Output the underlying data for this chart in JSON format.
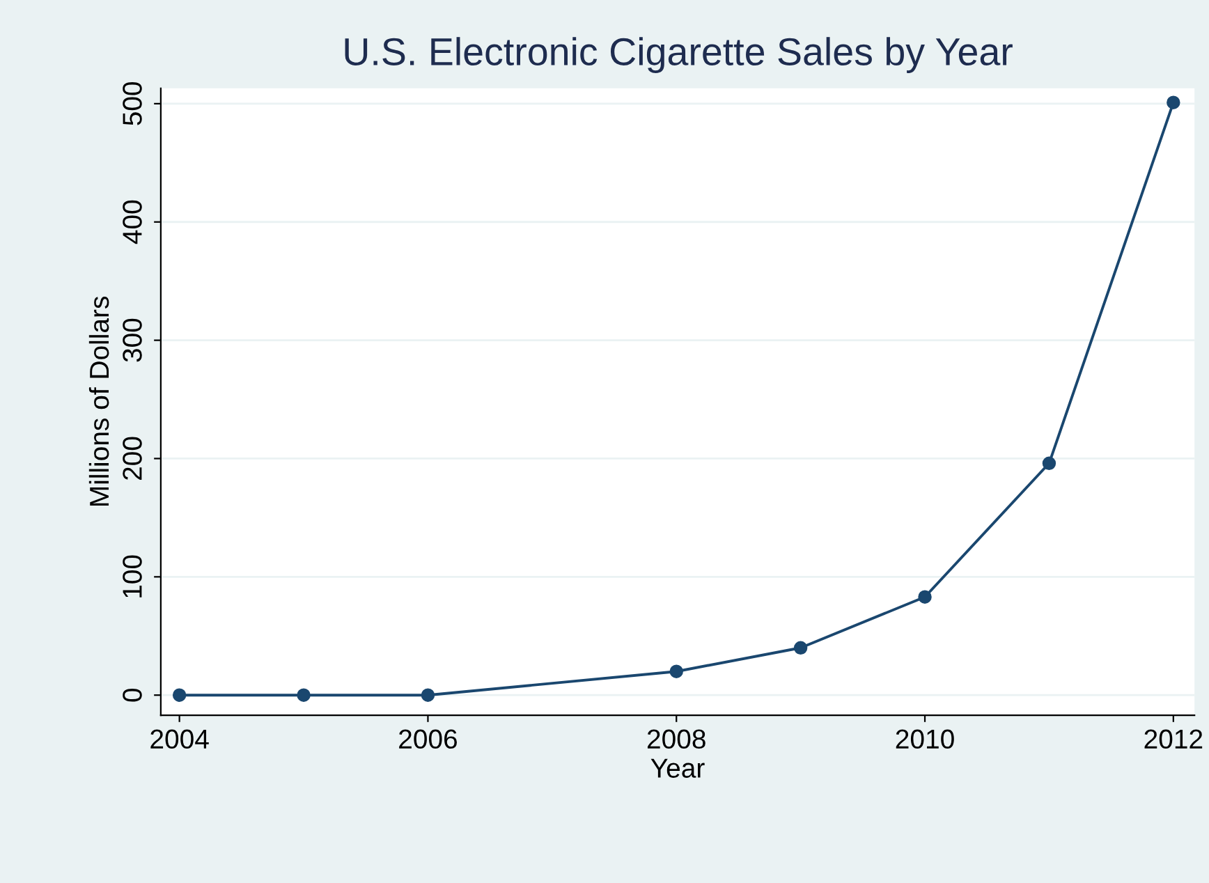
{
  "chart_data": {
    "type": "line",
    "title": "U.S. Electronic Cigarette Sales by Year",
    "xlabel": "Year",
    "ylabel": "Millions of Dollars",
    "x": [
      2004,
      2005,
      2006,
      2008,
      2009,
      2010,
      2011,
      2012
    ],
    "series": [
      {
        "color": "#1a476f",
        "values": [
          0,
          0,
          0,
          20,
          40,
          83,
          196,
          501
        ]
      }
    ],
    "xlim": [
      2003.85,
      2012.17
    ],
    "xticks": [
      2004,
      2006,
      2008,
      2010,
      2012
    ],
    "ylim": [
      -17,
      513
    ],
    "yticks": [
      0,
      100,
      200,
      300,
      400,
      500
    ],
    "grid": "y",
    "marker": "circle",
    "line_style": "solid"
  }
}
